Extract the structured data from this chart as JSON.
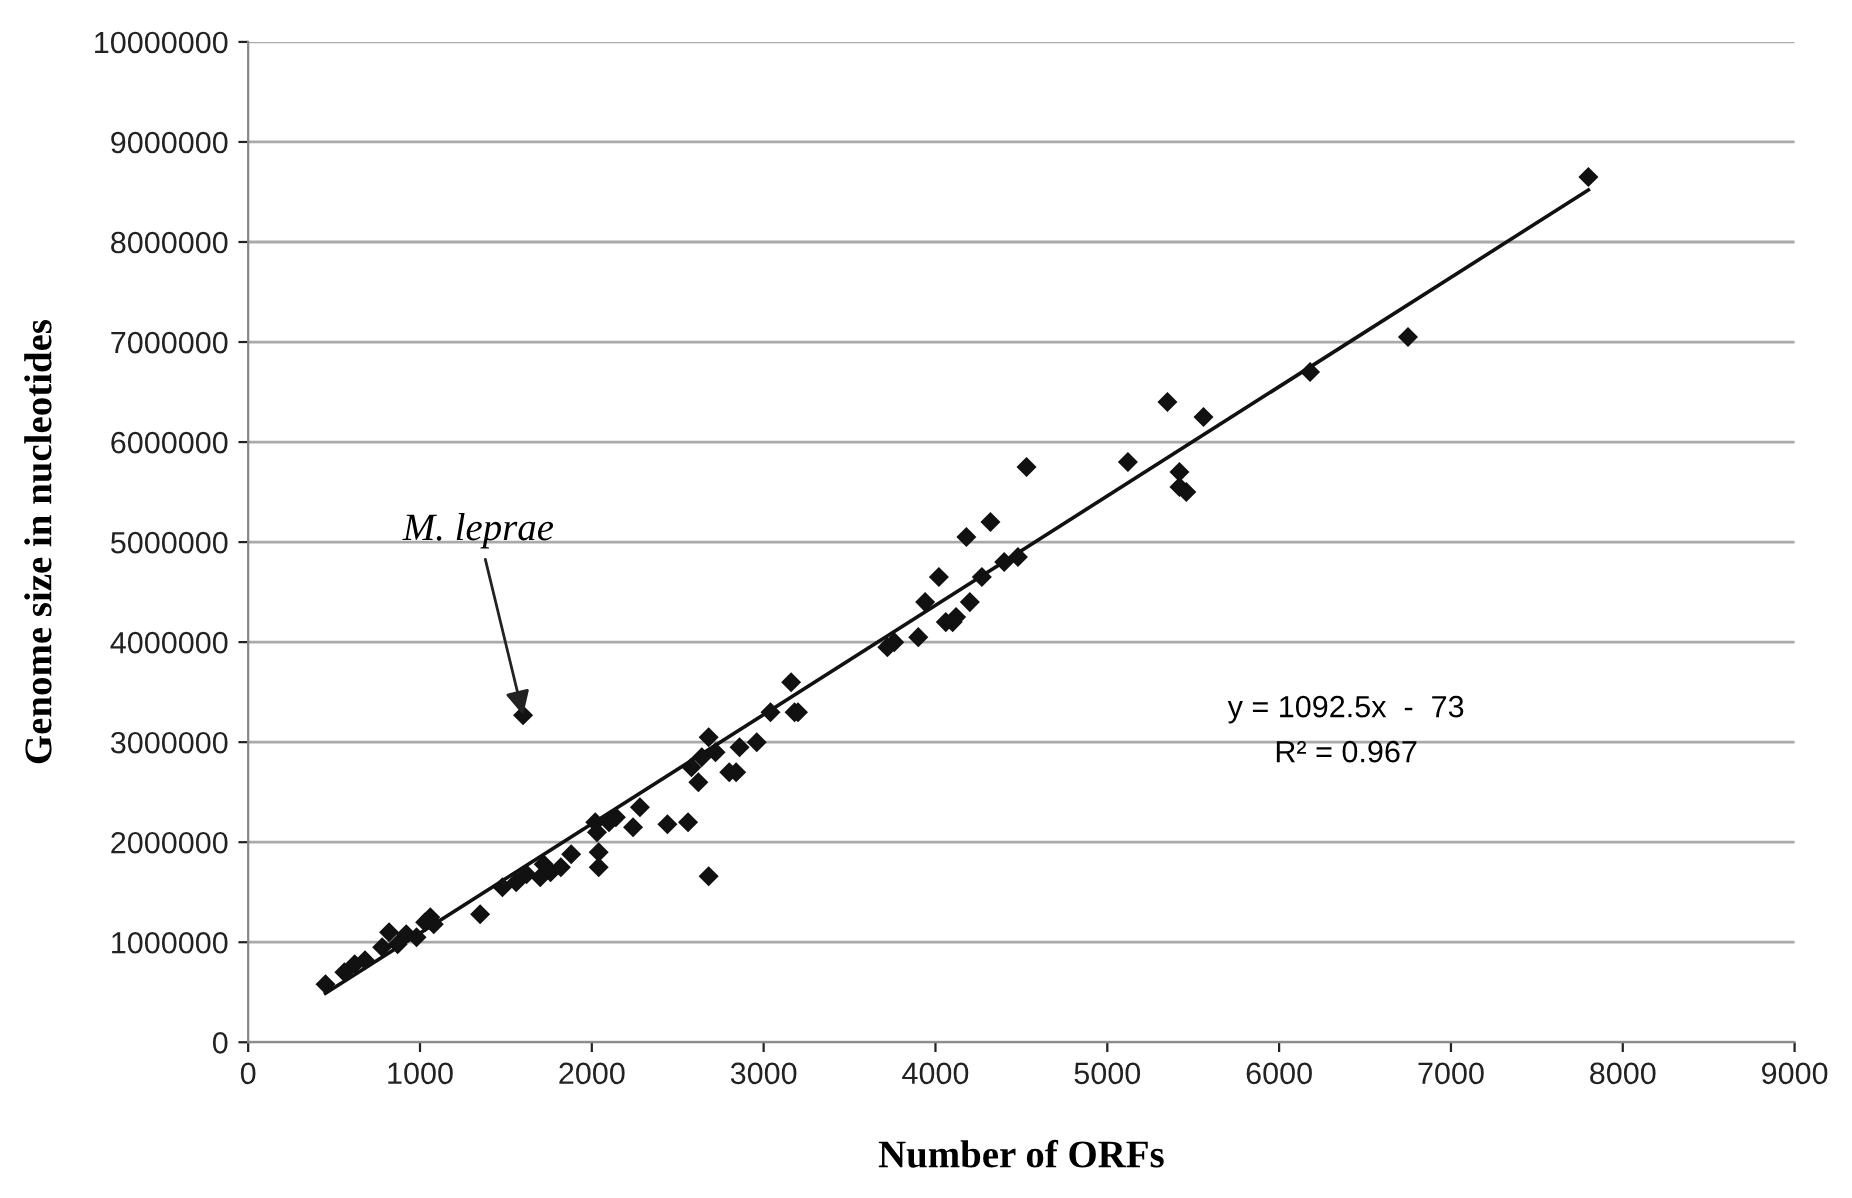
{
  "chart_data": {
    "type": "scatter",
    "xlabel": "Number of ORFs",
    "ylabel": "Genome size in nucleotides",
    "xlim": [
      0,
      9000
    ],
    "xticks": [
      0,
      1000,
      2000,
      3000,
      4000,
      5000,
      6000,
      7000,
      8000,
      9000
    ],
    "ylim": [
      0,
      10000000
    ],
    "yticks": [
      0,
      1000000,
      2000000,
      3000000,
      4000000,
      5000000,
      6000000,
      7000000,
      8000000,
      9000000,
      10000000
    ],
    "grid": "y",
    "marker": "diamond",
    "legend": false,
    "series": [
      {
        "color": "#111111",
        "x": [
          450,
          560,
          620,
          680,
          780,
          820,
          870,
          920,
          980,
          1030,
          1060,
          1080,
          1350,
          1480,
          1560,
          1620,
          1700,
          1720,
          1760,
          1820,
          1880,
          2020,
          2030,
          2040,
          2040,
          2100,
          2140,
          2240,
          2280,
          2440,
          2560,
          2580,
          2620,
          2640,
          2680,
          2680,
          2720,
          2800,
          2840,
          2860,
          2960,
          3040,
          3160,
          3180,
          3200,
          3720,
          3760,
          3900,
          3940,
          4020,
          4060,
          4100,
          4120,
          4180,
          4200,
          4270,
          4320,
          4400,
          4480,
          4530,
          5120,
          5350,
          5420,
          5420,
          5460,
          5560,
          6180,
          6750,
          7800,
          1600
        ],
        "values": [
          580000,
          700000,
          780000,
          820000,
          950000,
          1100000,
          980000,
          1080000,
          1050000,
          1200000,
          1250000,
          1180000,
          1280000,
          1550000,
          1600000,
          1680000,
          1650000,
          1780000,
          1700000,
          1750000,
          1880000,
          2200000,
          2100000,
          1900000,
          1750000,
          2200000,
          2250000,
          2150000,
          2350000,
          2180000,
          2200000,
          2750000,
          2600000,
          2850000,
          3050000,
          1660000,
          2900000,
          2700000,
          2700000,
          2950000,
          3000000,
          3300000,
          3600000,
          3300000,
          3300000,
          3950000,
          4000000,
          4050000,
          4400000,
          4650000,
          4200000,
          4200000,
          4250000,
          5050000,
          4400000,
          4650000,
          5200000,
          4800000,
          4850000,
          5750000,
          5800000,
          6400000,
          5700000,
          5550000,
          5500000,
          6250000,
          6700000,
          7050000,
          8650000,
          3270000
        ]
      },
      {
        "type": "line",
        "color": "#111111",
        "x": [
          450,
          7800
        ],
        "values": [
          490000,
          8520000
        ],
        "marker": "none",
        "line_style": "solid"
      }
    ],
    "annotations": [
      {
        "text": "M. leprae",
        "x": 1600,
        "y": 3270000
      },
      "y = 1092.5x  -  73",
      "R² = 0.967"
    ]
  }
}
